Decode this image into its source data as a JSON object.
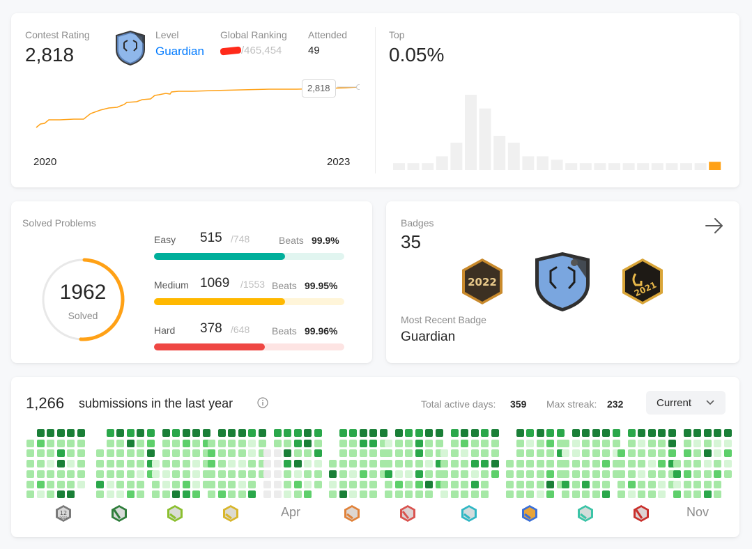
{
  "contest": {
    "rating_label": "Contest Rating",
    "rating_value": "2,818",
    "level_label": "Level",
    "level_value": "Guardian",
    "ranking_label": "Global Ranking",
    "ranking_value": "/465,454",
    "attended_label": "Attended",
    "attended_value": "49",
    "top_label": "Top",
    "top_value": "0.05%",
    "chart_start_year": "2020",
    "chart_end_year": "2023",
    "tooltip_value": "2,818",
    "accent_color": "#ffa116",
    "level_color": "#007aff"
  },
  "solved": {
    "title": "Solved Problems",
    "total": "1962",
    "total_label": "Solved",
    "easy": {
      "label": "Easy",
      "solved": "515",
      "total": "/748",
      "beats_label": "Beats",
      "beats": "99.9%",
      "fraction": 0.689,
      "color": "#00af9b",
      "track": "#e1f5f0"
    },
    "medium": {
      "label": "Medium",
      "solved": "1069",
      "total": "/1553",
      "beats_label": "Beats",
      "beats": "99.95%",
      "fraction": 0.688,
      "color": "#ffb800",
      "track": "#fff5d9"
    },
    "hard": {
      "label": "Hard",
      "solved": "378",
      "total": "/648",
      "beats_label": "Beats",
      "beats": "99.96%",
      "fraction": 0.583,
      "color": "#ef4743",
      "track": "#fde4e3"
    }
  },
  "badges": {
    "title": "Badges",
    "count": "35",
    "recent_label": "Most Recent Badge",
    "recent_value": "Guardian",
    "badge_year_1": "2022",
    "badge_year_2": "2021"
  },
  "submissions": {
    "count": "1,266",
    "title": "submissions in the last year",
    "active_label": "Total active days:",
    "active_value": "359",
    "streak_label": "Max streak:",
    "streak_value": "232",
    "select_value": "Current",
    "month_apr": "Apr",
    "month_nov": "Nov",
    "jan_badge_num": "12",
    "jan_badge_year": "2022"
  },
  "chart_data": [
    {
      "type": "line",
      "x": [
        "2020",
        "2021",
        "2022",
        "2023"
      ],
      "values": [
        1850,
        2300,
        2780,
        2818
      ],
      "annotations": [
        "2,818"
      ]
    },
    {
      "type": "bar",
      "values": [
        1,
        1,
        1,
        2,
        4,
        11,
        9,
        5,
        4,
        2,
        2,
        1.5,
        1,
        1,
        1,
        1,
        1,
        1,
        1,
        1,
        1,
        1,
        1.2
      ],
      "highlight_index": 22
    }
  ]
}
